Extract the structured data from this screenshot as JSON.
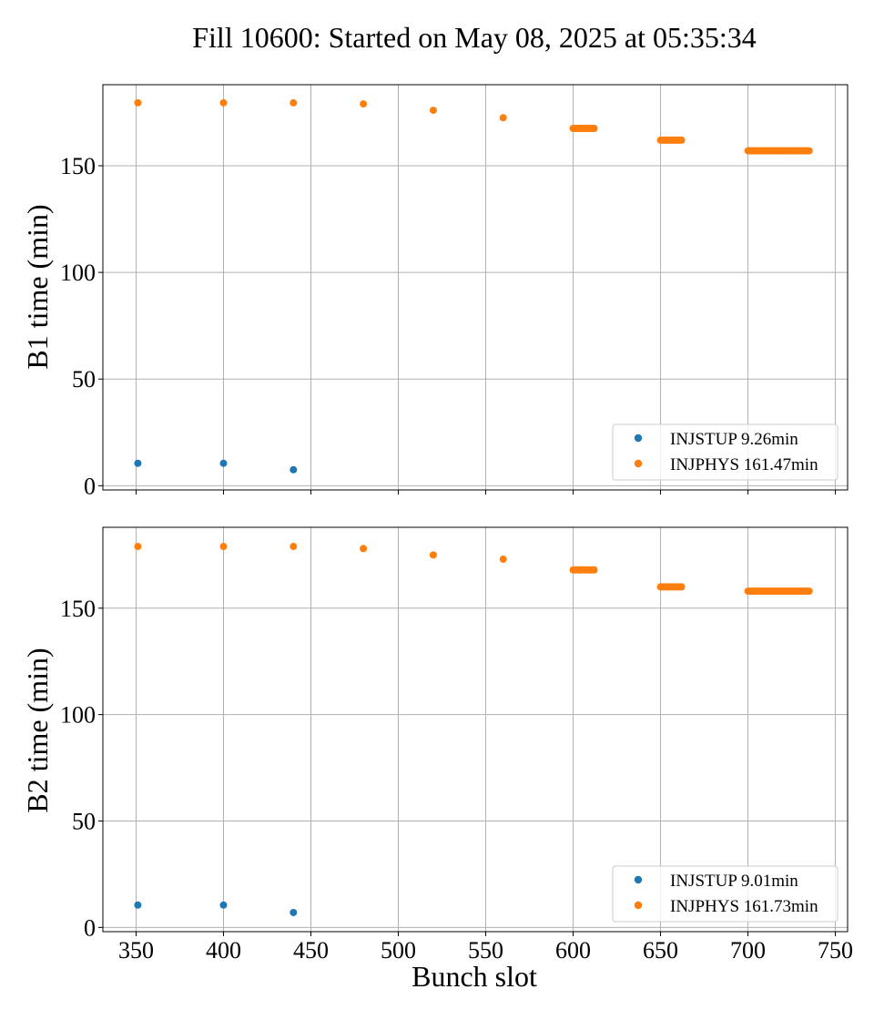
{
  "chart_data": {
    "title": "Fill 10600: Started on May 08, 2025 at 05:35:34",
    "type": "scatter",
    "xlabel": "Bunch slot",
    "xlim": [
      331,
      757
    ],
    "xticks": [
      350,
      400,
      450,
      500,
      550,
      600,
      650,
      700,
      750
    ],
    "xtick_labels": [
      "350",
      "400",
      "450",
      "500",
      "550",
      "600",
      "650",
      "700",
      "750"
    ],
    "grid": true,
    "legend_position": "lower right",
    "colors": {
      "INJSTUP": "#1f77b4",
      "INJPHYS": "#ff7f0e"
    },
    "panels": [
      {
        "ylabel": "B1 time (min)",
        "ylim": [
          -2,
          188
        ],
        "yticks": [
          0,
          50,
          100,
          150
        ],
        "ytick_labels": [
          "0",
          "50",
          "100",
          "150"
        ],
        "series": [
          {
            "name": "INJSTUP 9.26min",
            "points": [
              [
                351,
                10.5
              ],
              [
                400,
                10.5
              ],
              [
                440,
                7.5
              ]
            ]
          },
          {
            "name": "INJPHYS 161.47min",
            "points": [
              [
                351,
                179.5
              ],
              [
                400,
                179.5
              ],
              [
                440,
                179.5
              ],
              [
                480,
                179
              ],
              [
                520,
                176
              ],
              [
                560,
                172.5
              ]
            ],
            "runs": [
              {
                "x_start": 600,
                "x_end": 612,
                "y": 167.5
              },
              {
                "x_start": 650,
                "x_end": 662,
                "y": 162
              },
              {
                "x_start": 700,
                "x_end": 735,
                "y": 157
              }
            ]
          }
        ]
      },
      {
        "ylabel": "B2 time (min)",
        "ylim": [
          -2,
          188
        ],
        "yticks": [
          0,
          50,
          100,
          150
        ],
        "ytick_labels": [
          "0",
          "50",
          "100",
          "150"
        ],
        "series": [
          {
            "name": "INJSTUP 9.01min",
            "points": [
              [
                351,
                10.5
              ],
              [
                400,
                10.5
              ],
              [
                440,
                7
              ]
            ]
          },
          {
            "name": "INJPHYS 161.73min",
            "points": [
              [
                351,
                179
              ],
              [
                400,
                179
              ],
              [
                440,
                179
              ],
              [
                480,
                178
              ],
              [
                520,
                175
              ],
              [
                560,
                173
              ]
            ],
            "runs": [
              {
                "x_start": 600,
                "x_end": 612,
                "y": 168
              },
              {
                "x_start": 650,
                "x_end": 662,
                "y": 160
              },
              {
                "x_start": 700,
                "x_end": 735,
                "y": 158
              }
            ]
          }
        ]
      }
    ]
  }
}
